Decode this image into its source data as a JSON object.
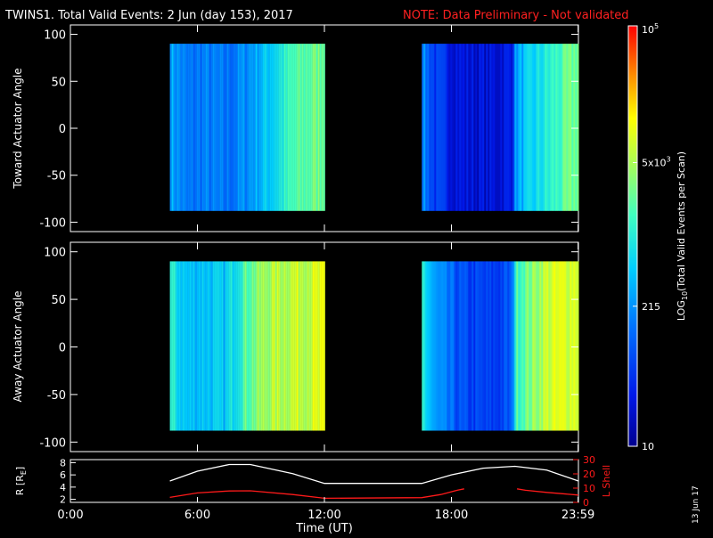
{
  "header": {
    "title": "TWINS1. Total Valid Events:  2 Jun (day 153), 2017",
    "note": "NOTE: Data Preliminary - Not validated"
  },
  "footer": {
    "side_date": "13 Jun 17"
  },
  "colors": {
    "title": "#ffffff",
    "note": "#ff2020",
    "l_shell": "#ff1a1a",
    "r_line": "#ffffff",
    "background": "#000000"
  },
  "chart_data": [
    {
      "type": "heatmap",
      "panel": "toward",
      "ylabel": "Toward Actuator Angle",
      "xlim": [
        0,
        24
      ],
      "ylim": [
        -110,
        110
      ],
      "y_ticks": [
        -100,
        -50,
        0,
        50,
        100
      ],
      "y_tick_labels": [
        "-100",
        "-50",
        "0",
        "50",
        "100"
      ],
      "data_y_range": [
        -88,
        90
      ],
      "colorscale": "log10",
      "zlim": [
        10,
        100000
      ],
      "segments": [
        {
          "x_start": 4.7,
          "x_end": 12.0,
          "profile": [
            [
              4.7,
              2.5
            ],
            [
              5.5,
              2.1
            ],
            [
              6.3,
              2.2
            ],
            [
              7.2,
              2.1
            ],
            [
              8.2,
              2.3
            ],
            [
              9.3,
              2.7
            ],
            [
              10.5,
              3.2
            ],
            [
              12.0,
              3.5
            ]
          ]
        },
        {
          "x_start": 16.6,
          "x_end": 24.0,
          "profile": [
            [
              16.6,
              2.3
            ],
            [
              17.2,
              1.7
            ],
            [
              18.5,
              1.4
            ],
            [
              19.8,
              1.35
            ],
            [
              20.8,
              1.5
            ],
            [
              21.0,
              2.4
            ],
            [
              22.5,
              3.0
            ],
            [
              24.0,
              3.5
            ]
          ]
        }
      ]
    },
    {
      "type": "heatmap",
      "panel": "away",
      "ylabel": "Away Actuator Angle",
      "xlim": [
        0,
        24
      ],
      "ylim": [
        -110,
        110
      ],
      "y_ticks": [
        -100,
        -50,
        0,
        50,
        100
      ],
      "y_tick_labels": [
        "-100",
        "-50",
        "0",
        "50",
        "100"
      ],
      "data_y_range": [
        -88,
        90
      ],
      "colorscale": "log10",
      "zlim": [
        10,
        100000
      ],
      "segments": [
        {
          "x_start": 4.7,
          "x_end": 12.0,
          "profile": [
            [
              4.7,
              3.0
            ],
            [
              5.5,
              2.6
            ],
            [
              6.3,
              2.7
            ],
            [
              7.2,
              2.6
            ],
            [
              8.2,
              3.3
            ],
            [
              9.3,
              3.7
            ],
            [
              10.5,
              3.85
            ],
            [
              12.0,
              3.9
            ]
          ]
        },
        {
          "x_start": 16.6,
          "x_end": 24.0,
          "profile": [
            [
              16.6,
              3.0
            ],
            [
              17.2,
              2.3
            ],
            [
              18.5,
              1.8
            ],
            [
              19.8,
              1.7
            ],
            [
              20.8,
              1.9
            ],
            [
              21.0,
              3.2
            ],
            [
              22.5,
              3.85
            ],
            [
              24.0,
              4.0
            ]
          ]
        }
      ]
    },
    {
      "type": "line",
      "panel": "orbit",
      "xlabel": "Time (UT)",
      "ylabel": "R [RE]",
      "ylabel_left": "R [R",
      "ylabel_sub": "E",
      "ylabel_right": "]",
      "y2label": "L Shell",
      "xlim": [
        0,
        24
      ],
      "x_ticks": [
        0,
        6,
        12,
        18,
        23.983
      ],
      "x_tick_labels": [
        "0:00",
        "6:00",
        "12:00",
        "18:00",
        "23:59"
      ],
      "ylim": [
        1.5,
        8.5
      ],
      "y_ticks": [
        2,
        4,
        6,
        8
      ],
      "y_tick_labels": [
        "2",
        "4",
        "6",
        "8"
      ],
      "y2lim": [
        0,
        30
      ],
      "y2_ticks": [
        0,
        10,
        20,
        30
      ],
      "y2_tick_labels": [
        "0",
        "10",
        "20",
        "30"
      ],
      "series": [
        {
          "axis": "left",
          "color": "#ffffff",
          "points": [
            [
              4.7,
              5.0
            ],
            [
              6.0,
              6.6
            ],
            [
              7.5,
              7.7
            ],
            [
              8.5,
              7.7
            ],
            [
              10.5,
              6.2
            ],
            [
              12.0,
              4.6
            ],
            [
              16.6,
              4.6
            ],
            [
              18.0,
              6.0
            ],
            [
              19.5,
              7.1
            ],
            [
              21.0,
              7.4
            ],
            [
              22.5,
              6.8
            ],
            [
              24.0,
              5.0
            ]
          ]
        },
        {
          "axis": "right",
          "color": "#ff1a1a",
          "points": [
            [
              4.7,
              3.5
            ],
            [
              6.0,
              6.6
            ],
            [
              7.5,
              8.0
            ],
            [
              8.5,
              8.1
            ],
            [
              10.5,
              5.5
            ],
            [
              12.0,
              2.9
            ],
            [
              16.6,
              3.3
            ],
            [
              17.5,
              5.5
            ],
            [
              18.3,
              8.6
            ],
            [
              18.6,
              9.5
            ]
          ]
        },
        {
          "axis": "right",
          "color": "#ff1a1a",
          "points": [
            [
              21.1,
              9.5
            ],
            [
              21.5,
              8.5
            ],
            [
              22.5,
              7.0
            ],
            [
              24.0,
              5.1
            ]
          ]
        }
      ]
    },
    {
      "type": "colorbar",
      "label": "LOG10(Total Valid Events per Scan)",
      "label_pre": "LOG",
      "label_sub": "10",
      "label_post": "(Total Valid Events per Scan)",
      "zlim": [
        10,
        100000
      ],
      "tick_values": [
        10,
        215,
        5000,
        100000
      ],
      "tick_labels": [
        {
          "base": "10",
          "sup": ""
        },
        {
          "base": "215",
          "sup": ""
        },
        {
          "base": "5x10",
          "sup": "3"
        },
        {
          "base": "10",
          "sup": "5"
        }
      ]
    }
  ]
}
